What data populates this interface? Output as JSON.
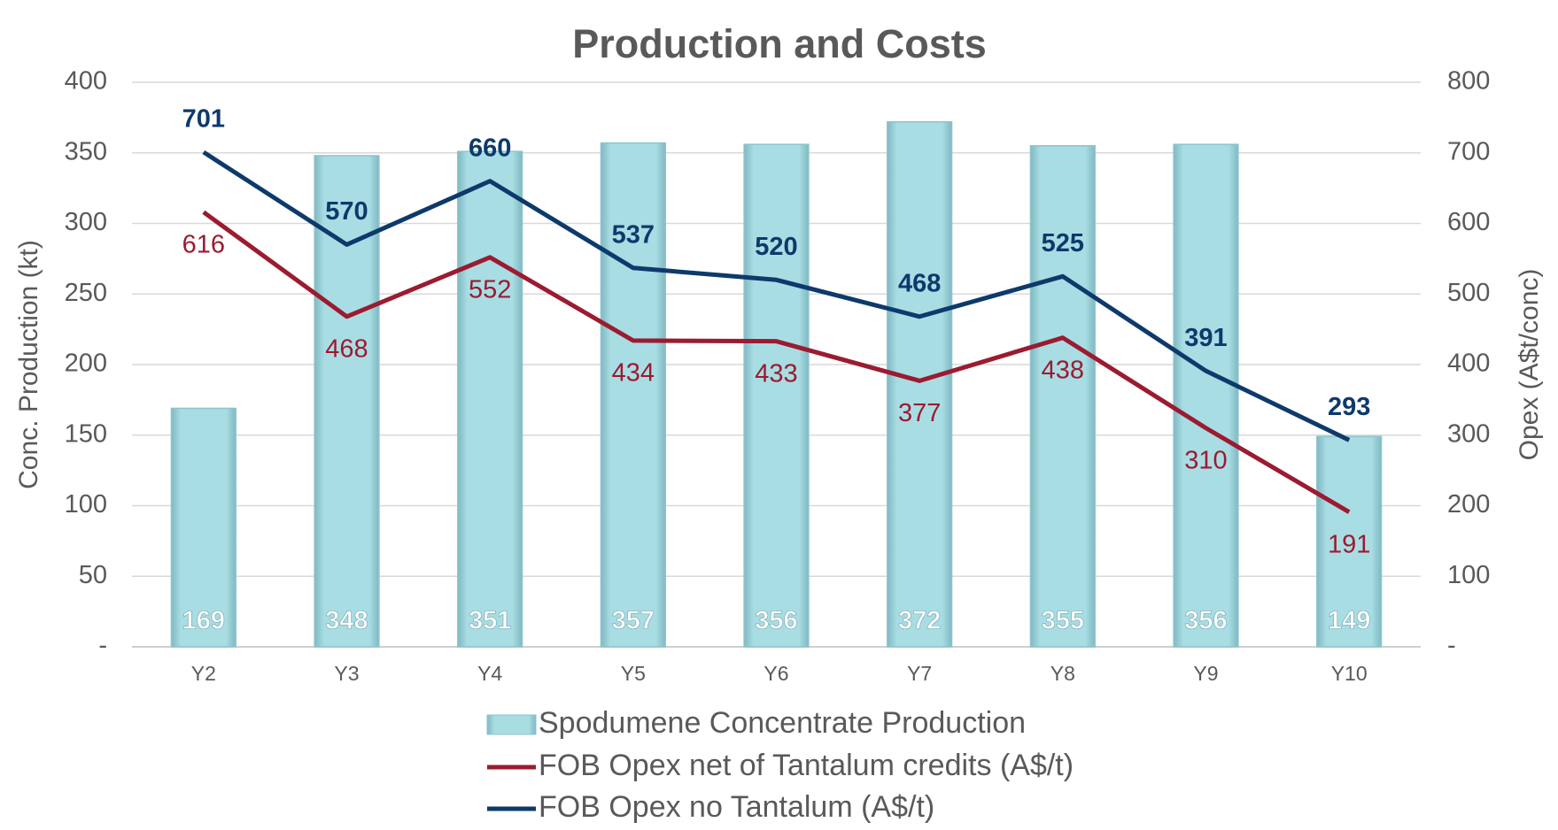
{
  "chart_data": {
    "type": "combo",
    "title": "Production and Costs",
    "y_label": "Conc. Production (kt)",
    "y2_label": "Opex (A$t/conc)",
    "categories": [
      "Y2",
      "Y3",
      "Y4",
      "Y5",
      "Y6",
      "Y7",
      "Y8",
      "Y9",
      "Y10"
    ],
    "series": [
      {
        "name": "Spodumene Concentrate Production",
        "type": "bar",
        "axis": "y",
        "color": "#9fd6dd",
        "values": [
          169,
          348,
          351,
          357,
          356,
          372,
          355,
          356,
          149
        ]
      },
      {
        "name": "FOB Opex net of Tantalum credits (A$/t)",
        "type": "line",
        "axis": "y2",
        "color": "#9b1b30",
        "values": [
          616,
          468,
          552,
          434,
          433,
          377,
          438,
          310,
          191
        ]
      },
      {
        "name": "FOB Opex no Tantalum (A$/t)",
        "type": "line",
        "axis": "y2",
        "color": "#0d3a6b",
        "values": [
          701,
          570,
          660,
          537,
          520,
          468,
          525,
          391,
          293
        ]
      }
    ],
    "ylim": [
      0,
      400
    ],
    "yticks": [
      {
        "value": 0,
        "label": "-"
      },
      50,
      100,
      150,
      200,
      250,
      300,
      350,
      400
    ],
    "y2lim": [
      0,
      800
    ],
    "y2ticks": [
      {
        "value": 0,
        "label": "-"
      },
      100,
      200,
      300,
      400,
      500,
      600,
      700,
      800
    ],
    "grid": true,
    "legend": "bottom"
  }
}
